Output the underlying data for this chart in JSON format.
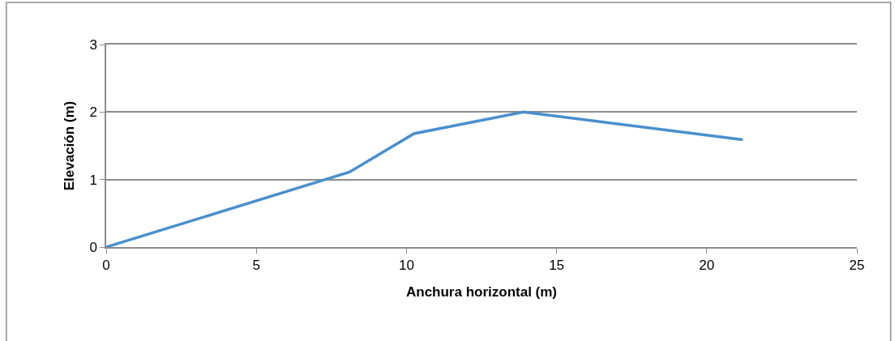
{
  "chart_data": {
    "type": "line",
    "xlabel": "Anchura horizontal (m)",
    "ylabel": "Elevación (m)",
    "x": [
      0,
      8.1,
      10.25,
      13.9,
      21.2
    ],
    "series": [
      {
        "color": "#4a8fcd",
        "values": [
          0,
          1.11,
          1.68,
          2.0,
          1.59
        ]
      }
    ],
    "xlim": [
      0,
      25
    ],
    "xticks": [
      0,
      5,
      10,
      15,
      20,
      25
    ],
    "ylim": [
      0,
      3
    ],
    "yticks": [
      0,
      1,
      2,
      3
    ],
    "grid": "y",
    "marker": "none",
    "line_style": "solid"
  }
}
